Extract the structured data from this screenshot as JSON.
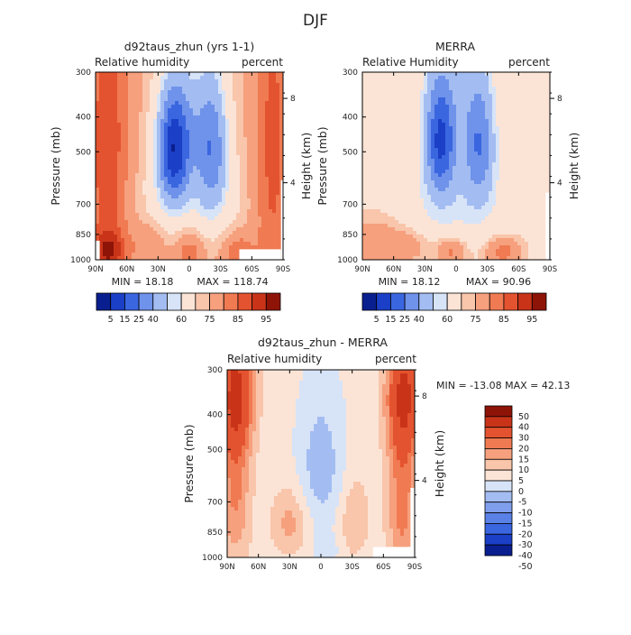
{
  "figure": {
    "title": "DJF"
  },
  "colors": {
    "rh": [
      "#0a1f8f",
      "#1b3fc6",
      "#3a66e0",
      "#6f92ea",
      "#a3bdf2",
      "#d7e3f7",
      "#fbe4d6",
      "#f9c5ab",
      "#f6a07d",
      "#f07a52",
      "#e4532f",
      "#c93419",
      "#8e1408"
    ],
    "diff": [
      "#0a1f8f",
      "#1b3fc6",
      "#3a66e0",
      "#5a81e6",
      "#7f9eec",
      "#a3bdf2",
      "#d7e3f7",
      "#fbe4d6",
      "#f9c5ab",
      "#f6a07d",
      "#f07a52",
      "#e4532f",
      "#c93419",
      "#8e1408"
    ]
  },
  "chart_data": [
    {
      "type": "heatmap",
      "title": "d92taus_zhun (yrs 1-1)",
      "subtitle_left": "Relative humidity",
      "subtitle_right": "percent",
      "xlabel": "",
      "ylabel": "Pressure (mb)",
      "ylabel_right": "Height (km)",
      "x_ticks": [
        "90N",
        "60N",
        "30N",
        "0",
        "30S",
        "60S",
        "90S"
      ],
      "y_ticks": [
        "300",
        "400",
        "500",
        "700",
        "850",
        "1000"
      ],
      "y_ticks_right": [
        "8",
        "4"
      ],
      "xlim": [
        90,
        -90
      ],
      "ylim": [
        1000,
        300
      ],
      "min_label": "MIN =   18.18",
      "max_label": "MAX =  118.74",
      "colorbar_labels": [
        "5",
        "15",
        "25",
        "40",
        "60",
        "75",
        "85",
        "95"
      ]
    },
    {
      "type": "heatmap",
      "title": "MERRA",
      "subtitle_left": "Relative Humidity",
      "subtitle_right": "percent",
      "xlabel": "",
      "ylabel": "Pressure (mb)",
      "ylabel_right": "Height (km)",
      "x_ticks": [
        "90N",
        "60N",
        "30N",
        "0",
        "30S",
        "60S",
        "90S"
      ],
      "y_ticks": [
        "300",
        "400",
        "500",
        "700",
        "850",
        "1000"
      ],
      "y_ticks_right": [
        "8",
        "4"
      ],
      "xlim": [
        90,
        -90
      ],
      "ylim": [
        1000,
        300
      ],
      "min_label": "MIN =   18.12",
      "max_label": "MAX =   90.96",
      "colorbar_labels": [
        "5",
        "15",
        "25",
        "40",
        "60",
        "75",
        "85",
        "95"
      ]
    },
    {
      "type": "heatmap",
      "title": "d92taus_zhun - MERRA",
      "subtitle_left": "Relative humidity",
      "subtitle_right": "percent",
      "xlabel": "",
      "ylabel": "Pressure (mb)",
      "ylabel_right": "Height (km)",
      "x_ticks": [
        "90N",
        "60N",
        "30N",
        "0",
        "30S",
        "60S",
        "90S"
      ],
      "y_ticks": [
        "300",
        "400",
        "500",
        "700",
        "850",
        "1000"
      ],
      "y_ticks_right": [
        "8",
        "4"
      ],
      "xlim": [
        90,
        -90
      ],
      "ylim": [
        1000,
        300
      ],
      "minmax_label": "MIN = -13.08   MAX =   42.13",
      "colorbar_labels": [
        "50",
        "40",
        "30",
        "20",
        "15",
        "10",
        "5",
        "0",
        "-5",
        "-10",
        "-15",
        "-20",
        "-30",
        "-40",
        "-50"
      ]
    }
  ]
}
